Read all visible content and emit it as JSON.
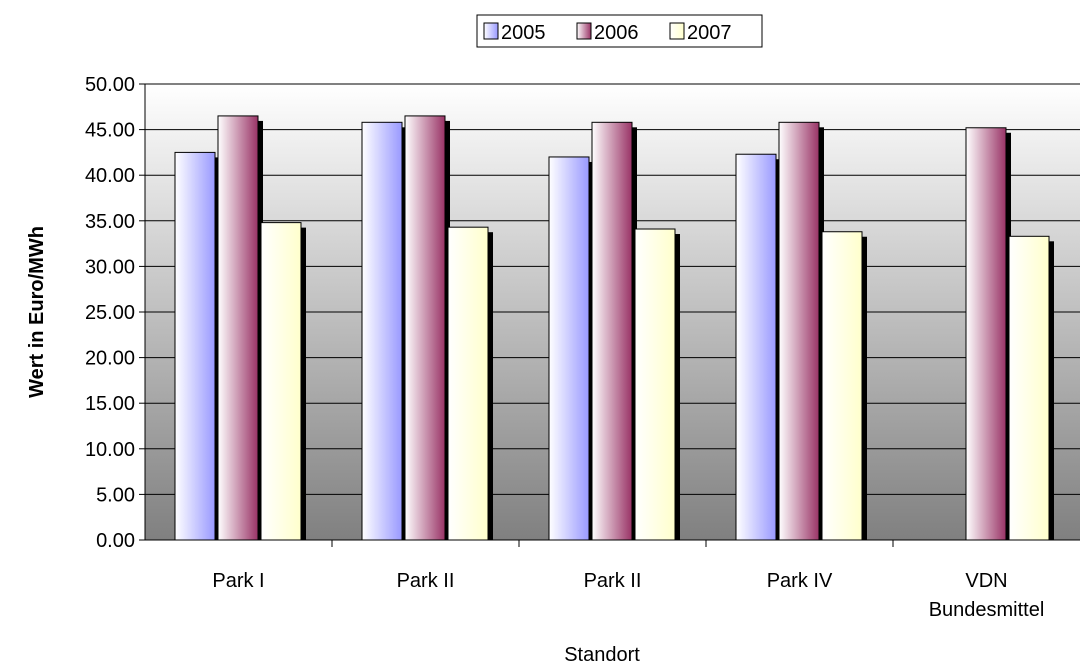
{
  "chart_data": {
    "type": "bar",
    "title": "",
    "xlabel": "Standort",
    "ylabel": "Wert in Euro/MWh",
    "categories": [
      [
        "Park I"
      ],
      [
        "Park II"
      ],
      [
        "Park II"
      ],
      [
        "Park IV"
      ],
      [
        "VDN",
        "Bundesmittel"
      ]
    ],
    "series": [
      {
        "name": "2005",
        "values": [
          42.5,
          45.8,
          42.0,
          42.3,
          null
        ]
      },
      {
        "name": "2006",
        "values": [
          46.5,
          46.5,
          45.8,
          45.8,
          45.2
        ]
      },
      {
        "name": "2007",
        "values": [
          34.8,
          34.3,
          34.1,
          33.8,
          33.3
        ]
      }
    ],
    "ylim": [
      0,
      50
    ],
    "yticks": [
      "0.00",
      "5.00",
      "10.00",
      "15.00",
      "20.00",
      "25.00",
      "30.00",
      "35.00",
      "40.00",
      "45.00",
      "50.00"
    ],
    "grid": true,
    "legend": "top",
    "colors": {
      "2005": "#9999ff",
      "2006": "#993366",
      "2007": "#ffffcc",
      "plot_bg_top": "#ffffff",
      "plot_bg_bottom": "#808080",
      "gridline": "#000000"
    }
  }
}
